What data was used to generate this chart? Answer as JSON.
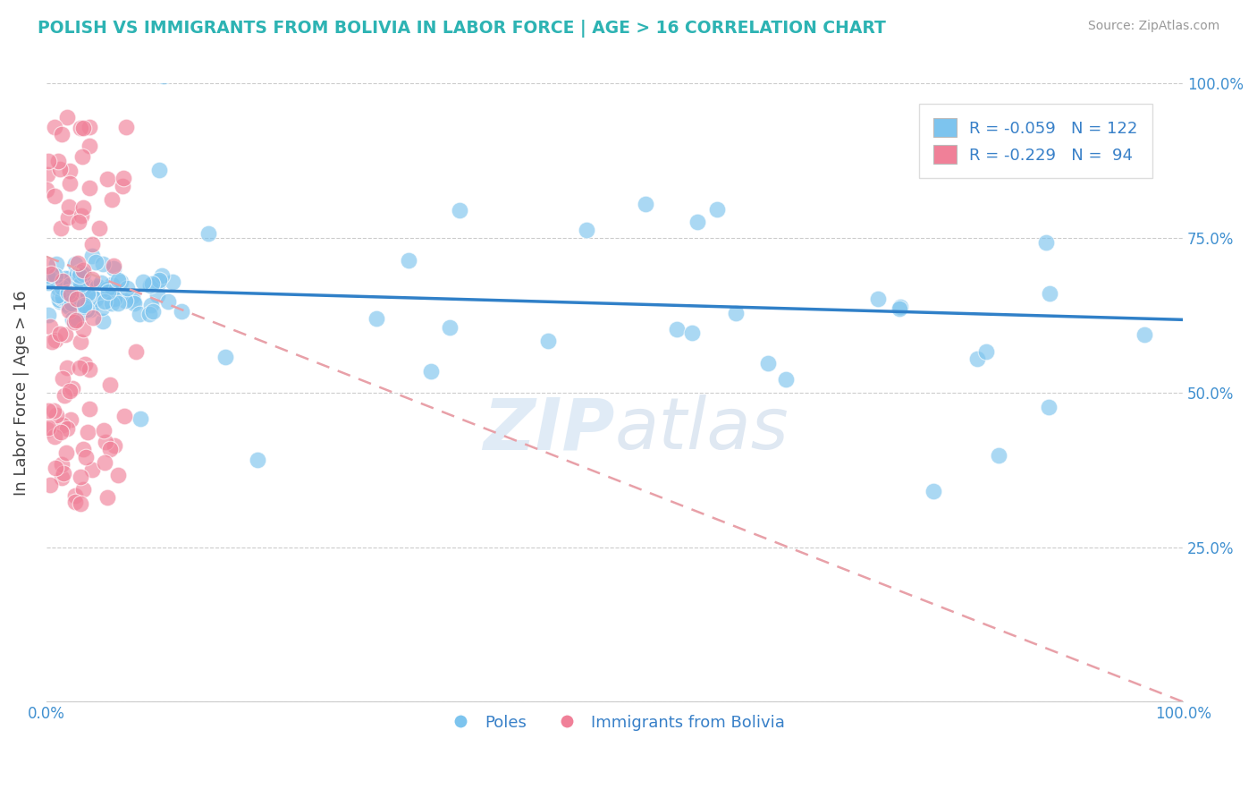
{
  "title": "POLISH VS IMMIGRANTS FROM BOLIVIA IN LABOR FORCE | AGE > 16 CORRELATION CHART",
  "source": "Source: ZipAtlas.com",
  "ylabel": "In Labor Force | Age > 16",
  "title_color": "#2DB3B3",
  "blue_color": "#7DC4EE",
  "pink_color": "#F08098",
  "blue_line_color": "#3080C8",
  "pink_line_color": "#E8A0A8",
  "watermark": "ZIPAtlas",
  "xlim": [
    0.0,
    1.0
  ],
  "ylim": [
    0.0,
    1.0
  ],
  "yticks": [
    0.0,
    0.25,
    0.5,
    0.75,
    1.0
  ],
  "ytick_labels": [
    "",
    "25.0%",
    "50.0%",
    "75.0%",
    "100.0%"
  ],
  "xticks": [
    0.0,
    0.25,
    0.5,
    0.75,
    1.0
  ],
  "xtick_labels": [
    "0.0%",
    "",
    "",
    "",
    "100.0%"
  ],
  "legend_label1": "Poles",
  "legend_label2": "Immigrants from Bolivia",
  "blue_intercept": 0.67,
  "blue_slope": -0.052,
  "pink_intercept": 0.72,
  "pink_slope": -0.72,
  "blue_N": 122,
  "pink_N": 94,
  "blue_R": -0.059,
  "pink_R": -0.229
}
